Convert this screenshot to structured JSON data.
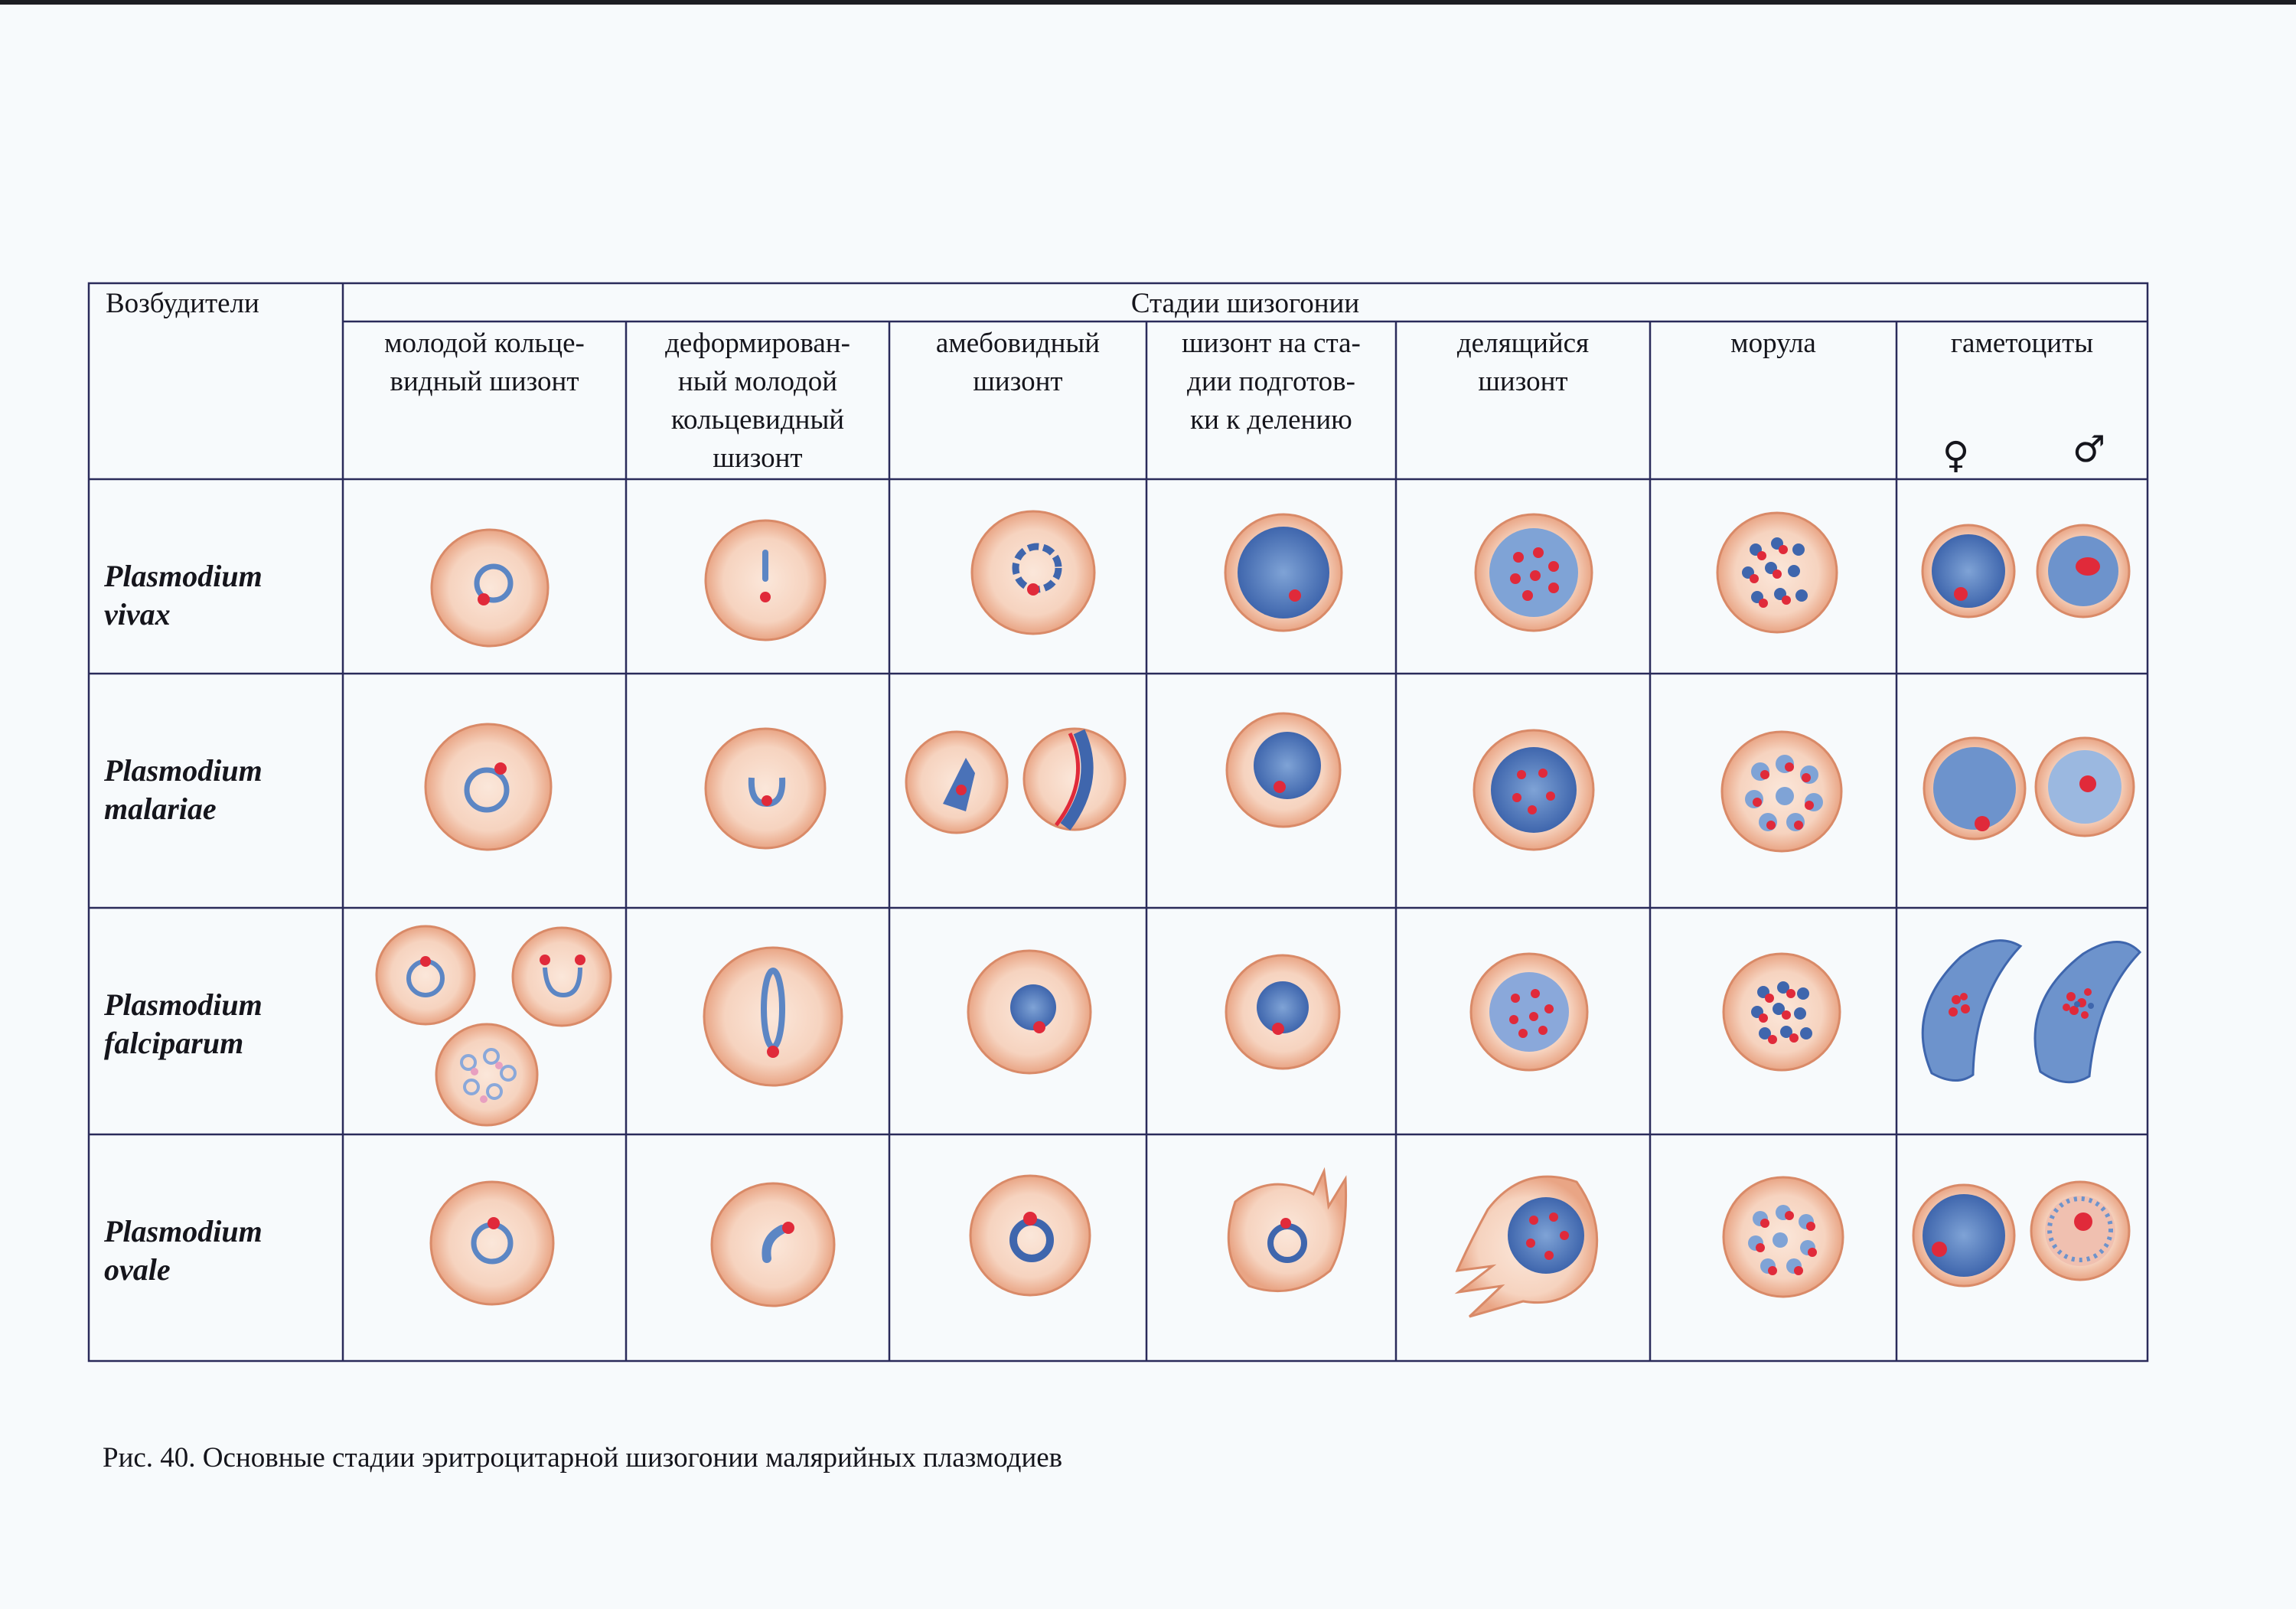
{
  "table": {
    "corner_header": "Возбудители",
    "group_header": "Стадии шизогонии",
    "stages": [
      "молодой кольце-\nвидный  шизонт",
      "деформирован-\nный молодой\nкольцевидный\nшизонт",
      "амебовидный\nшизонт",
      "шизонт на ста-\nдии подготов-\nки к делению",
      "делящийся\nшизонт",
      "морула",
      "гаметоциты"
    ],
    "gametocyte_symbols": {
      "female": "♀",
      "male": "♂"
    },
    "species": [
      "Plasmodium\nvivax",
      "Plasmodium\nmalariae",
      "Plasmodium\nfalciparum",
      "Plasmodium\novale"
    ]
  },
  "caption": "Рис. 40. Основные стадии эритроцитарной шизогонии малярийных плазмодиев",
  "colors": {
    "cell_fill": "#f8d9c6",
    "cell_rim": "#d98a68",
    "parasite_blue": "#5c86c4",
    "chromatin_red": "#e02a3a",
    "grid_line": "#2a2b5a"
  }
}
